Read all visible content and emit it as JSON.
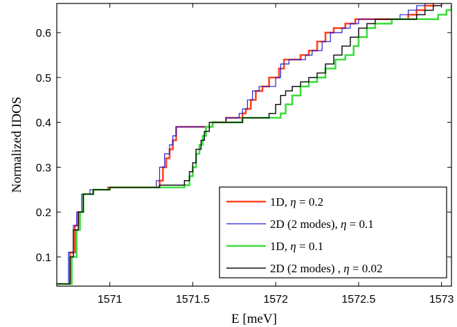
{
  "chart_data": {
    "type": "line",
    "title": "",
    "xlabel": "E [meV]",
    "ylabel": "Normalized IDOS",
    "xlim": [
      1570.68,
      1573.06
    ],
    "ylim": [
      0.035,
      0.665
    ],
    "xticks": [
      1571,
      1571.5,
      1572,
      1572.5,
      1573
    ],
    "xtick_labels": [
      "1571",
      "1571.5",
      "1572",
      "1572.5",
      "1573"
    ],
    "yticks": [
      0.1,
      0.2,
      0.3,
      0.4,
      0.5,
      0.6
    ],
    "ytick_labels": [
      "0.1",
      "0.2",
      "0.3",
      "0.4",
      "0.5",
      "0.6"
    ],
    "grid": false,
    "legend_position": "bottom-right",
    "series": [
      {
        "name": "1D, η = 0.2",
        "legend_prefix": "1D,",
        "legend_eta": "0.2",
        "color": "#ff4422",
        "width": 2.6,
        "x": [
          1570.68,
          1570.72,
          1570.76,
          1570.79,
          1570.81,
          1570.84,
          1570.9,
          1570.95,
          1570.99,
          1571.05,
          1571.15,
          1571.25,
          1571.3,
          1571.32,
          1571.34,
          1571.36,
          1571.38,
          1571.4,
          1571.42,
          1571.45,
          1571.55,
          1571.62,
          1571.7,
          1571.75,
          1571.8,
          1571.82,
          1571.85,
          1571.88,
          1571.92,
          1571.96,
          1572.02,
          1572.05,
          1572.1,
          1572.15,
          1572.2,
          1572.25,
          1572.3,
          1572.35,
          1572.42,
          1572.48,
          1572.55,
          1572.65,
          1572.75,
          1572.8,
          1572.85,
          1572.9,
          1572.95
        ],
        "y": [
          0.04,
          0.04,
          0.11,
          0.17,
          0.2,
          0.24,
          0.25,
          0.25,
          0.255,
          0.255,
          0.255,
          0.255,
          0.27,
          0.3,
          0.32,
          0.34,
          0.36,
          0.39,
          0.39,
          0.39,
          0.39,
          0.4,
          0.41,
          0.41,
          0.42,
          0.43,
          0.45,
          0.47,
          0.48,
          0.5,
          0.52,
          0.54,
          0.54,
          0.55,
          0.56,
          0.58,
          0.6,
          0.61,
          0.62,
          0.63,
          0.63,
          0.63,
          0.63,
          0.64,
          0.65,
          0.66,
          0.665
        ]
      },
      {
        "name": "2D (2 modes), η = 0.1",
        "legend_prefix": "2D (2 modes),",
        "legend_eta": "0.1",
        "color": "#1f1fd6",
        "width": 1.2,
        "x": [
          1570.68,
          1570.71,
          1570.75,
          1570.78,
          1570.8,
          1570.83,
          1570.88,
          1570.94,
          1571.0,
          1571.1,
          1571.2,
          1571.25,
          1571.28,
          1571.3,
          1571.33,
          1571.36,
          1571.38,
          1571.4,
          1571.45,
          1571.55,
          1571.62,
          1571.7,
          1571.75,
          1571.78,
          1571.8,
          1571.83,
          1571.86,
          1571.9,
          1571.94,
          1572.0,
          1572.03,
          1572.08,
          1572.12,
          1572.18,
          1572.22,
          1572.28,
          1572.33,
          1572.4,
          1572.45,
          1572.5,
          1572.6,
          1572.7,
          1572.75,
          1572.8,
          1572.85,
          1572.9
        ],
        "y": [
          0.04,
          0.04,
          0.11,
          0.17,
          0.2,
          0.24,
          0.25,
          0.25,
          0.255,
          0.255,
          0.255,
          0.255,
          0.27,
          0.3,
          0.33,
          0.35,
          0.37,
          0.39,
          0.39,
          0.39,
          0.4,
          0.41,
          0.41,
          0.42,
          0.43,
          0.45,
          0.47,
          0.48,
          0.48,
          0.5,
          0.53,
          0.54,
          0.54,
          0.55,
          0.56,
          0.58,
          0.6,
          0.61,
          0.62,
          0.63,
          0.63,
          0.63,
          0.64,
          0.65,
          0.66,
          0.665
        ]
      },
      {
        "name": "1D, η = 0.1",
        "legend_prefix": "1D,",
        "legend_eta": "0.1",
        "color": "#3fdd3f",
        "width": 2.6,
        "x": [
          1570.68,
          1570.74,
          1570.77,
          1570.8,
          1570.82,
          1570.84,
          1570.9,
          1571.0,
          1571.1,
          1571.2,
          1571.3,
          1571.4,
          1571.45,
          1571.48,
          1571.5,
          1571.52,
          1571.54,
          1571.56,
          1571.58,
          1571.62,
          1571.7,
          1571.8,
          1571.9,
          1571.98,
          1572.03,
          1572.06,
          1572.1,
          1572.15,
          1572.2,
          1572.25,
          1572.3,
          1572.36,
          1572.42,
          1572.47,
          1572.5,
          1572.55,
          1572.6,
          1572.7,
          1572.8,
          1572.9,
          1572.98,
          1573.03,
          1573.06
        ],
        "y": [
          0.04,
          0.04,
          0.1,
          0.16,
          0.2,
          0.24,
          0.25,
          0.255,
          0.255,
          0.255,
          0.255,
          0.255,
          0.26,
          0.28,
          0.3,
          0.33,
          0.35,
          0.37,
          0.39,
          0.4,
          0.4,
          0.41,
          0.41,
          0.41,
          0.42,
          0.44,
          0.46,
          0.48,
          0.49,
          0.5,
          0.52,
          0.54,
          0.55,
          0.57,
          0.59,
          0.61,
          0.62,
          0.63,
          0.63,
          0.63,
          0.64,
          0.65,
          0.66
        ]
      },
      {
        "name": "2D (2 modes) , η = 0.02",
        "legend_prefix": "2D (2 modes) ,",
        "legend_eta": "0.02",
        "color": "#111111",
        "width": 1.5,
        "x": [
          1570.68,
          1570.73,
          1570.76,
          1570.78,
          1570.81,
          1570.84,
          1570.9,
          1571.0,
          1571.1,
          1571.2,
          1571.3,
          1571.38,
          1571.45,
          1571.48,
          1571.5,
          1571.52,
          1571.55,
          1571.57,
          1571.6,
          1571.7,
          1571.8,
          1571.9,
          1571.96,
          1572.0,
          1572.03,
          1572.06,
          1572.1,
          1572.15,
          1572.2,
          1572.25,
          1572.3,
          1572.35,
          1572.4,
          1572.45,
          1572.5,
          1572.55,
          1572.6,
          1572.7,
          1572.8,
          1572.85,
          1572.9,
          1572.95,
          1573.0
        ],
        "y": [
          0.04,
          0.04,
          0.1,
          0.16,
          0.2,
          0.24,
          0.25,
          0.255,
          0.255,
          0.255,
          0.26,
          0.26,
          0.27,
          0.29,
          0.31,
          0.34,
          0.36,
          0.38,
          0.4,
          0.4,
          0.41,
          0.41,
          0.42,
          0.44,
          0.46,
          0.47,
          0.48,
          0.49,
          0.5,
          0.51,
          0.53,
          0.55,
          0.57,
          0.59,
          0.61,
          0.62,
          0.63,
          0.63,
          0.63,
          0.64,
          0.65,
          0.66,
          0.665
        ]
      }
    ]
  }
}
